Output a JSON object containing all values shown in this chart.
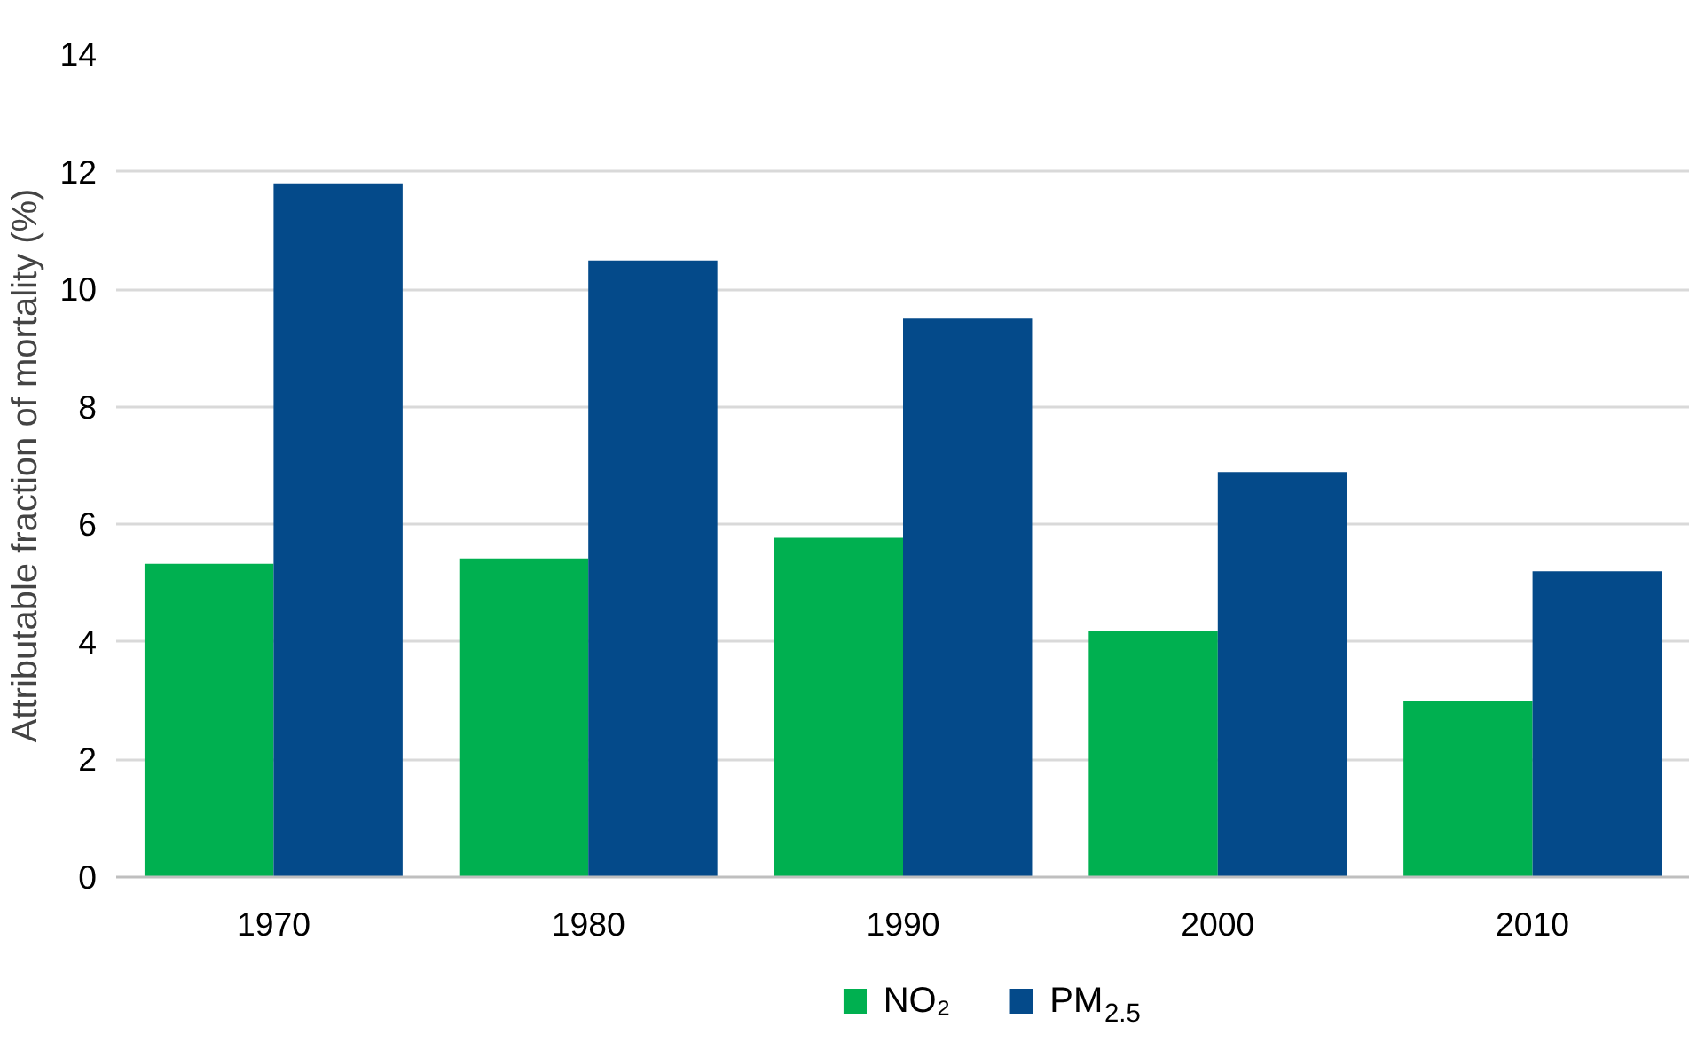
{
  "chart_data": {
    "type": "bar",
    "ylabel": "Attributable fraction of mortality (%)",
    "categories": [
      "1970",
      "1980",
      "1990",
      "2000",
      "2010"
    ],
    "series": [
      {
        "name": "NO₂",
        "color": "#00b050",
        "values": [
          5.33,
          5.42,
          5.77,
          4.18,
          3.0
        ]
      },
      {
        "name": "PM$_{2.5}$",
        "color": "#044a8a",
        "values": [
          11.8,
          10.49,
          9.5,
          6.89,
          5.2
        ]
      }
    ],
    "ylim": [
      0,
      14
    ],
    "yticks": [
      0,
      2,
      4,
      6,
      8,
      10,
      12,
      14
    ],
    "grid": "y",
    "legend": "bottom"
  }
}
